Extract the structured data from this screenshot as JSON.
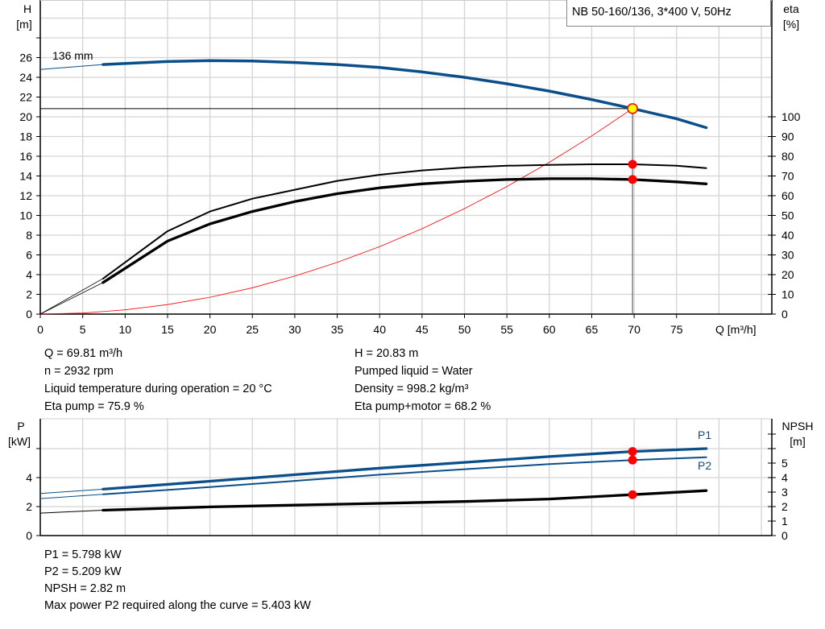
{
  "chart_data": [
    {
      "type": "line",
      "title": "NB 50-160/136, 3*400 V, 50Hz",
      "xlabel": "Q [m³/h]",
      "ylabel": "H [m]",
      "y2label": "eta [%]",
      "xlim": [
        0,
        86
      ],
      "ylim": [
        0,
        31.8
      ],
      "y2lim": [
        0,
        130
      ],
      "x_ticks": [
        "0",
        "5",
        "10",
        "15",
        "20",
        "25",
        "30",
        "35",
        "40",
        "45",
        "50",
        "55",
        "60",
        "65",
        "70",
        "75"
      ],
      "y_ticks": [
        "0",
        "2",
        "4",
        "6",
        "8",
        "10",
        "12",
        "14",
        "16",
        "18",
        "20",
        "22",
        "24",
        "26"
      ],
      "y2_ticks": [
        "0",
        "10",
        "20",
        "30",
        "40",
        "50",
        "60",
        "70",
        "80",
        "90",
        "100"
      ],
      "grid": true,
      "curve_label": "136 mm",
      "series": [
        {
          "key": "H",
          "color": "#0b4f8a",
          "axis": "y",
          "x": [
            0,
            7.4,
            15,
            20,
            25,
            30,
            35,
            40,
            45,
            50,
            55,
            60,
            65,
            69.81,
            75,
            78.5
          ],
          "values": [
            24.8,
            25.3,
            25.6,
            25.7,
            25.65,
            25.5,
            25.3,
            25.0,
            24.55,
            24.0,
            23.35,
            22.6,
            21.75,
            20.83,
            19.8,
            18.9
          ]
        },
        {
          "key": "eta_pump",
          "color": "#000000",
          "axis": "y2",
          "x": [
            0,
            7.4,
            15,
            20,
            25,
            30,
            35,
            40,
            45,
            50,
            55,
            60,
            65,
            69.81,
            75,
            78.5
          ],
          "values": [
            0,
            18,
            42,
            52,
            58.5,
            63,
            67.5,
            70.6,
            72.8,
            74.3,
            75.2,
            75.6,
            75.9,
            75.9,
            75.2,
            74
          ]
        },
        {
          "key": "eta_pump_motor",
          "color": "#000000",
          "axis": "y2",
          "x": [
            0,
            7.4,
            15,
            20,
            25,
            30,
            35,
            40,
            45,
            50,
            55,
            60,
            65,
            69.81,
            75,
            78.5
          ],
          "values": [
            0,
            16,
            37,
            45.7,
            52,
            57,
            61,
            64,
            66,
            67.3,
            68.2,
            68.6,
            68.6,
            68.2,
            67,
            66
          ]
        },
        {
          "key": "system_curve",
          "color": "#ff0000",
          "axis": "y",
          "x": [
            0,
            5,
            10,
            15,
            20,
            25,
            30,
            35,
            40,
            45,
            50,
            55,
            60,
            65,
            69.81
          ],
          "values": [
            0,
            0.11,
            0.43,
            0.96,
            1.71,
            2.67,
            3.85,
            5.24,
            6.84,
            8.65,
            10.69,
            12.93,
            15.39,
            18.06,
            20.83
          ]
        }
      ],
      "duty_point": {
        "Q": 69.81,
        "H": 20.83,
        "eta_pump": 75.9,
        "eta_pump_motor": 68.2
      }
    },
    {
      "type": "line",
      "xlabel": "",
      "ylabel": "P [kW]",
      "y2label": "NPSH [m]",
      "xlim": [
        0,
        86
      ],
      "ylim": [
        0,
        8
      ],
      "y2lim": [
        0,
        8
      ],
      "y_ticks": [
        "0",
        "2",
        "4"
      ],
      "y2_ticks": [
        "0",
        "1",
        "2",
        "3",
        "4",
        "5"
      ],
      "grid": true,
      "series": [
        {
          "name": "P1",
          "color": "#0b4f8a",
          "x": [
            0,
            7.4,
            20,
            30,
            40,
            50,
            60,
            69.81,
            78.5
          ],
          "values": [
            2.9,
            3.2,
            3.75,
            4.2,
            4.65,
            5.05,
            5.45,
            5.798,
            6.0
          ]
        },
        {
          "name": "P2",
          "color": "#0b4f8a",
          "x": [
            0,
            7.4,
            20,
            30,
            40,
            50,
            60,
            69.81,
            78.5
          ],
          "values": [
            2.55,
            2.85,
            3.35,
            3.77,
            4.2,
            4.58,
            4.93,
            5.209,
            5.4
          ]
        },
        {
          "key": "NPSH",
          "color": "#000000",
          "x": [
            0,
            7.4,
            20,
            30,
            40,
            50,
            60,
            69.81,
            78.5
          ],
          "values": [
            1.55,
            1.75,
            1.98,
            2.1,
            2.22,
            2.35,
            2.52,
            2.82,
            3.1
          ]
        }
      ],
      "duty_point": {
        "Q": 69.81,
        "P1": 5.798,
        "P2": 5.209,
        "NPSH": 2.82
      }
    }
  ],
  "colors": {
    "pump_curve": "#0b4f8a",
    "system_curve": "#ff0000",
    "duty_point_fill": "#ffff00",
    "marker": "#ff0000"
  },
  "labels": {
    "H_axis": "H",
    "H_unit": "[m]",
    "eta_axis": "eta",
    "eta_unit": "[%]",
    "Q_axis": "Q [m³/h]",
    "P_axis": "P",
    "P_unit": "[kW]",
    "NPSH_axis": "NPSH",
    "NPSH_unit": "[m]",
    "P1": "P1",
    "P2": "P2"
  },
  "info_top": {
    "left": [
      "Q = 69.81 m³/h",
      "n = 2932 rpm",
      "Liquid temperature during operation = 20 °C",
      "Eta pump = 75.9 %"
    ],
    "right": [
      "H = 20.83 m",
      "Pumped liquid = Water",
      "Density = 998.2 kg/m³",
      "Eta pump+motor = 68.2 %"
    ]
  },
  "info_bottom": [
    "P1 = 5.798 kW",
    "P2 = 5.209 kW",
    "NPSH = 2.82 m",
    "Max power P2 required along the curve = 5.403 kW"
  ]
}
